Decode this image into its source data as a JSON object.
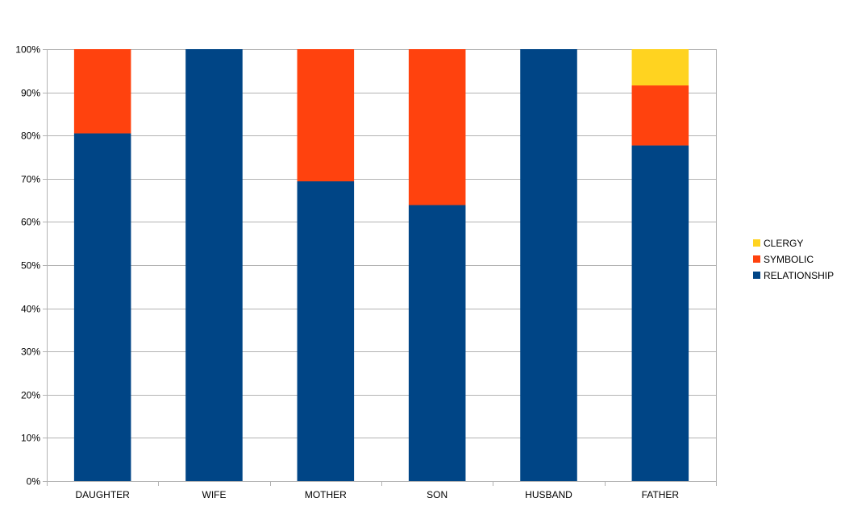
{
  "chart_data": {
    "type": "bar",
    "stacked": true,
    "percent_stacked": true,
    "categories": [
      "DAUGHTER",
      "WIFE",
      "MOTHER",
      "SON",
      "HUSBAND",
      "FATHER"
    ],
    "series": [
      {
        "name": "RELATIONSHIP",
        "color": "#004586",
        "values": [
          80.5,
          100,
          69.4,
          63.9,
          100,
          77.7
        ]
      },
      {
        "name": "SYMBOLIC",
        "color": "#FF420E",
        "values": [
          19.5,
          0,
          30.6,
          36.1,
          0,
          13.9
        ]
      },
      {
        "name": "CLERGY",
        "color": "#FFD320",
        "values": [
          0,
          0,
          0,
          0,
          0,
          8.4
        ]
      }
    ],
    "ylim": [
      0,
      100
    ],
    "yticks": [
      "0%",
      "10%",
      "20%",
      "30%",
      "40%",
      "50%",
      "60%",
      "70%",
      "80%",
      "90%",
      "100%"
    ],
    "title": "",
    "xlabel": "",
    "ylabel": "",
    "grid": true,
    "legend": {
      "position": "right",
      "order": [
        "CLERGY",
        "SYMBOLIC",
        "RELATIONSHIP"
      ]
    }
  }
}
